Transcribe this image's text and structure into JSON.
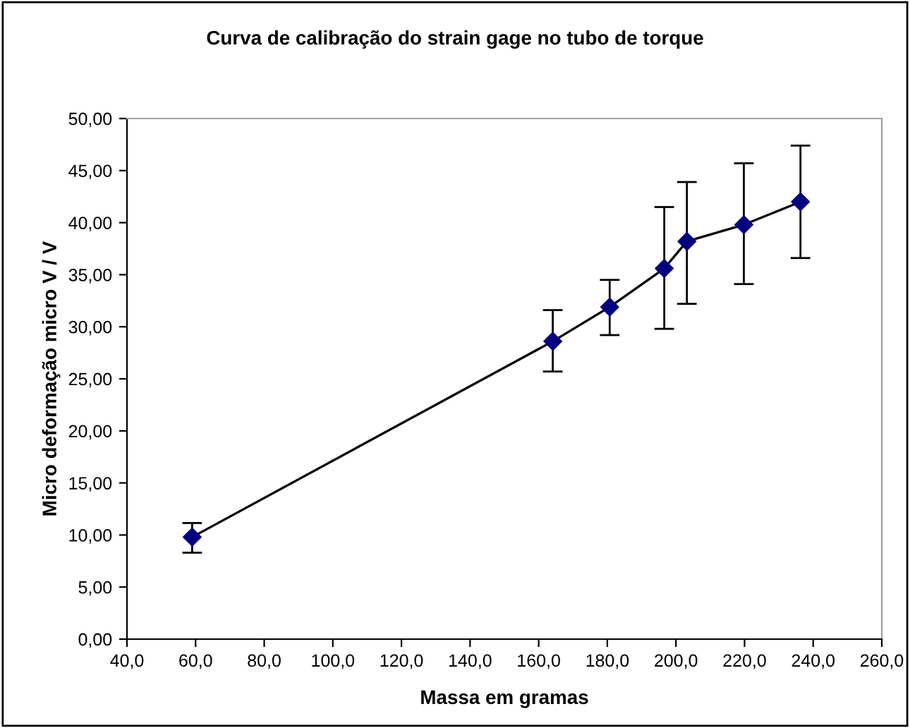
{
  "chart_data": {
    "type": "line",
    "title": "Curva de calibração do strain gage no tubo de torque",
    "xlabel": "Massa em gramas",
    "ylabel": "Micro deformação micro V / V",
    "x": [
      59.0,
      164.1,
      180.7,
      196.6,
      203.2,
      219.8,
      236.3
    ],
    "series": [
      {
        "color": "#000080",
        "values": [
          9.8,
          28.6,
          31.9,
          35.6,
          38.2,
          39.8,
          42.0
        ],
        "errors": [
          [
            8.3,
            11.15
          ],
          [
            25.7,
            31.6
          ],
          [
            29.2,
            34.5
          ],
          [
            29.8,
            41.5
          ],
          [
            32.2,
            43.9
          ],
          [
            34.1,
            45.7
          ],
          [
            36.6,
            47.4
          ]
        ]
      }
    ],
    "marker": "diamond",
    "line_style": "solid",
    "xlim": [
      40,
      260
    ],
    "xticks": [
      {
        "value": 40,
        "label": "40,0"
      },
      {
        "value": 60,
        "label": "60,0"
      },
      {
        "value": 80,
        "label": "80,0"
      },
      {
        "value": 100,
        "label": "100,0"
      },
      {
        "value": 120,
        "label": "120,0"
      },
      {
        "value": 140,
        "label": "140,0"
      },
      {
        "value": 160,
        "label": "160,0"
      },
      {
        "value": 180,
        "label": "180,0"
      },
      {
        "value": 200,
        "label": "200,0"
      },
      {
        "value": 220,
        "label": "220,0"
      },
      {
        "value": 240,
        "label": "240,0"
      },
      {
        "value": 260,
        "label": "260,0"
      }
    ],
    "ylim": [
      0,
      50
    ],
    "yticks": [
      {
        "value": 0,
        "label": "0,00"
      },
      {
        "value": 5,
        "label": "5,00"
      },
      {
        "value": 10,
        "label": "10,00"
      },
      {
        "value": 15,
        "label": "15,00"
      },
      {
        "value": 20,
        "label": "20,00"
      },
      {
        "value": 25,
        "label": "25,00"
      },
      {
        "value": 30,
        "label": "30,00"
      },
      {
        "value": 35,
        "label": "35,00"
      },
      {
        "value": 40,
        "label": "40,00"
      },
      {
        "value": 45,
        "label": "45,00"
      },
      {
        "value": 50,
        "label": "50,00"
      }
    ],
    "grid": false,
    "legend": false
  }
}
